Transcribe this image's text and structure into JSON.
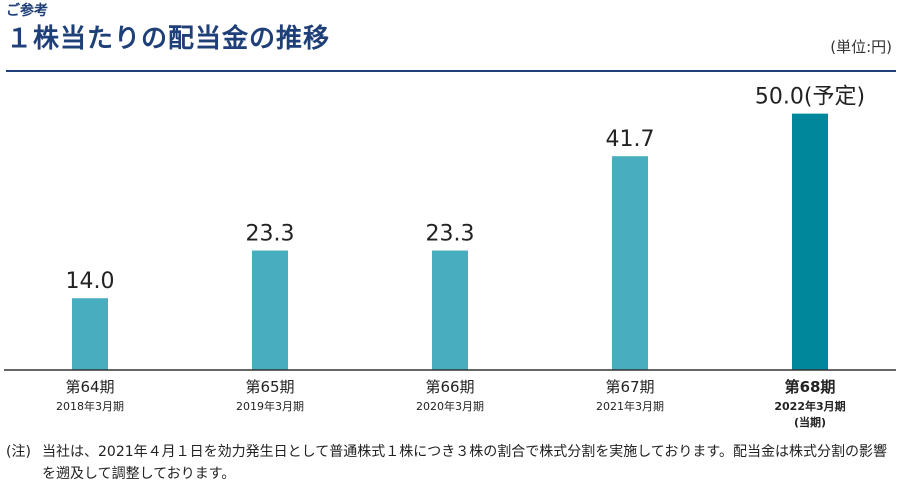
{
  "header": {
    "eyebrow": "ご参考",
    "title": "１株当たりの配当金の推移",
    "unit": "(単位:円)"
  },
  "colors": {
    "title": "#1f3f78",
    "bar": "#49adc0",
    "bar_current": "#00879b",
    "axis": "#333333"
  },
  "chart_data": {
    "type": "bar",
    "categories": [
      "第64期",
      "第65期",
      "第66期",
      "第67期",
      "第68期"
    ],
    "sub_labels": [
      "2018年3月期",
      "2019年3月期",
      "2020年3月期",
      "2021年3月期",
      "2022年3月期"
    ],
    "extra_labels": [
      "",
      "",
      "",
      "",
      "(当期)"
    ],
    "values": [
      14.0,
      23.3,
      23.3,
      41.7,
      50.0
    ],
    "value_labels": [
      "14.0",
      "23.3",
      "23.3",
      "41.7",
      "50.0(予定)"
    ],
    "highlight_index": 4,
    "ylim": [
      0,
      55
    ],
    "grid": false,
    "legend": "none"
  },
  "note": {
    "tag": "(注)",
    "text": "当社は、2021年４月１日を効力発生日として普通株式１株につき３株の割合で株式分割を実施しております。配当金は株式分割の影響を遡及して調整しております。"
  }
}
